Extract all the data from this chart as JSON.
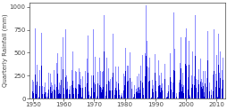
{
  "title": "",
  "ylabel": "Quarterly Rainfall (mm)",
  "xlabel": "",
  "xlim": [
    1948.8,
    2012.8
  ],
  "ylim": [
    0,
    1050
  ],
  "yticks": [
    0,
    250,
    500,
    750,
    1000
  ],
  "xticks": [
    1950,
    1960,
    1970,
    1980,
    1990,
    2000,
    2010
  ],
  "bar_color_dark": "#0000CC",
  "bar_color_light": "#6666FF",
  "bar_alpha_dark": 1.0,
  "bar_alpha_light": 0.75,
  "background_color": "#ffffff",
  "seed": 42,
  "n_years": 63,
  "start_year": 1950,
  "quarters_per_year": 4,
  "ylabel_fontsize": 5,
  "tick_fontsize": 5,
  "figwidth": 2.55,
  "figheight": 1.24,
  "dpi": 100
}
